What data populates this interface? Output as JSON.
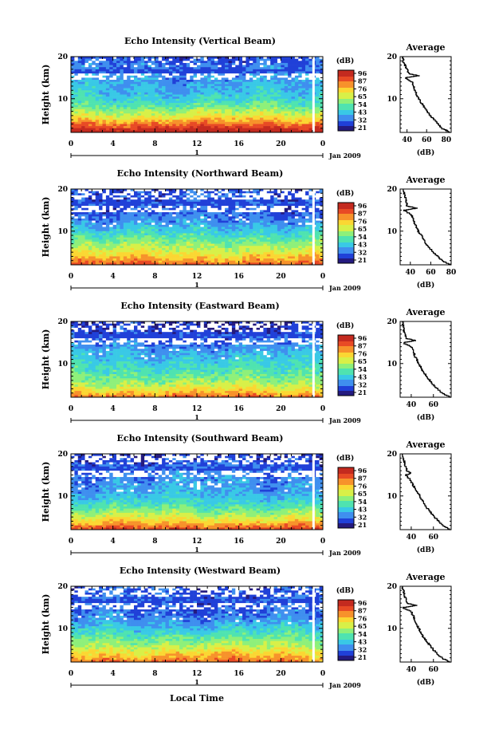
{
  "bottom_xlabel": "Local Time",
  "colorbar": {
    "unit": "(dB)",
    "tick_labels": [
      "96",
      "87",
      "76",
      "65",
      "54",
      "43",
      "32",
      "21"
    ],
    "range": [
      21,
      96
    ],
    "colormap": [
      "#241a7f",
      "#2040d8",
      "#3f8fef",
      "#39c9e6",
      "#4fe3b0",
      "#8ef07a",
      "#d8f048",
      "#fbd733",
      "#f7922b",
      "#e84a25",
      "#c42a1f"
    ]
  },
  "chart_data": [
    {
      "type": "heatmap",
      "title": "Echo Intensity (Vertical Beam)",
      "ylabel": "Height (km)",
      "xlabel": "",
      "x_tick_labels": [
        "0",
        "4",
        "8",
        "12",
        "16",
        "20",
        "0"
      ],
      "y_tick_labels": [
        "10",
        "20"
      ],
      "xlim": [
        0,
        24
      ],
      "ylim": [
        2,
        20
      ],
      "date_marker": "1",
      "date_label": "Jan 2009",
      "z_range": [
        21,
        96
      ],
      "profile": {
        "title": "Average",
        "xlabel": "(dB)",
        "x_tick_labels": [
          "40",
          "60",
          "80"
        ],
        "xlim": [
          33,
          85
        ],
        "x_ticks": [
          40,
          60,
          80
        ],
        "heights": [
          2,
          3,
          4,
          5,
          6,
          7,
          8,
          9,
          10,
          11,
          12,
          13,
          14,
          15,
          15.5,
          16,
          17,
          18,
          19,
          20
        ],
        "values": [
          85,
          76,
          72,
          68,
          64,
          61,
          58,
          55,
          52,
          50,
          48,
          47,
          45,
          38,
          52,
          42,
          40,
          38,
          36,
          36
        ]
      }
    },
    {
      "type": "heatmap",
      "title": "Echo Intensity (Northward Beam)",
      "ylabel": "Height (km)",
      "xlabel": "",
      "x_tick_labels": [
        "0",
        "4",
        "8",
        "12",
        "16",
        "20",
        "0"
      ],
      "y_tick_labels": [
        "10",
        "20"
      ],
      "xlim": [
        0,
        24
      ],
      "ylim": [
        2,
        20
      ],
      "date_marker": "1",
      "date_label": "Jan 2009",
      "z_range": [
        21,
        96
      ],
      "profile": {
        "title": "Average",
        "xlabel": "(dB)",
        "x_tick_labels": [
          "40",
          "60",
          "80"
        ],
        "xlim": [
          30,
          80
        ],
        "x_ticks": [
          40,
          60,
          80
        ],
        "heights": [
          2,
          3,
          4,
          5,
          6,
          7,
          8,
          9,
          10,
          11,
          12,
          13,
          14,
          15,
          15.5,
          16,
          17,
          18,
          19,
          20
        ],
        "values": [
          80,
          72,
          67,
          63,
          59,
          56,
          53,
          51,
          48,
          46,
          44,
          43,
          41,
          34,
          46,
          37,
          36,
          35,
          34,
          33
        ]
      }
    },
    {
      "type": "heatmap",
      "title": "Echo Intensity (Eastward Beam)",
      "ylabel": "Height (km)",
      "xlabel": "",
      "x_tick_labels": [
        "0",
        "4",
        "8",
        "12",
        "16",
        "20",
        "0"
      ],
      "y_tick_labels": [
        "10",
        "20"
      ],
      "xlim": [
        0,
        24
      ],
      "ylim": [
        2,
        20
      ],
      "date_marker": "1",
      "date_label": "Jan 2009",
      "z_range": [
        21,
        96
      ],
      "profile": {
        "title": "Average",
        "xlabel": "(dB)",
        "x_tick_labels": [
          "40",
          "60"
        ],
        "xlim": [
          30,
          76
        ],
        "x_ticks": [
          40,
          60
        ],
        "heights": [
          2,
          3,
          4,
          5,
          6,
          7,
          8,
          9,
          10,
          11,
          12,
          13,
          14,
          15,
          15.5,
          16,
          17,
          18,
          19,
          20
        ],
        "values": [
          76,
          68,
          64,
          60,
          57,
          54,
          51,
          49,
          47,
          45,
          43,
          42,
          40,
          33,
          44,
          36,
          35,
          33,
          33,
          32
        ]
      }
    },
    {
      "type": "heatmap",
      "title": "Echo Intensity (Southward Beam)",
      "ylabel": "Height (km)",
      "xlabel": "",
      "x_tick_labels": [
        "0",
        "4",
        "8",
        "12",
        "16",
        "20",
        "0"
      ],
      "y_tick_labels": [
        "10",
        "20"
      ],
      "xlim": [
        0,
        24
      ],
      "ylim": [
        2,
        20
      ],
      "date_marker": "1",
      "date_label": "Jan 2009",
      "z_range": [
        21,
        96
      ],
      "profile": {
        "title": "Average",
        "xlabel": "(dB)",
        "x_tick_labels": [
          "40",
          "60"
        ],
        "xlim": [
          30,
          76
        ],
        "x_ticks": [
          40,
          60
        ],
        "heights": [
          2,
          3,
          4,
          5,
          6,
          7,
          8,
          9,
          10,
          11,
          12,
          13,
          14,
          15,
          15.5,
          16,
          17,
          18,
          19,
          20
        ],
        "values": [
          76,
          69,
          65,
          61,
          58,
          55,
          52,
          50,
          48,
          45,
          43,
          41,
          39,
          35,
          40,
          36,
          35,
          34,
          33,
          32
        ]
      }
    },
    {
      "type": "heatmap",
      "title": "Echo Intensity (Westward Beam)",
      "ylabel": "Height (km)",
      "xlabel": "",
      "x_tick_labels": [
        "0",
        "4",
        "8",
        "12",
        "16",
        "20",
        "0"
      ],
      "y_tick_labels": [
        "10",
        "20"
      ],
      "xlim": [
        0,
        24
      ],
      "ylim": [
        2,
        20
      ],
      "date_marker": "1",
      "date_label": "Jan 2009",
      "z_range": [
        21,
        96
      ],
      "profile": {
        "title": "Average",
        "xlabel": "(dB)",
        "x_tick_labels": [
          "40",
          "60"
        ],
        "xlim": [
          30,
          76
        ],
        "x_ticks": [
          40,
          60
        ],
        "heights": [
          2,
          3,
          4,
          5,
          6,
          7,
          8,
          9,
          10,
          11,
          12,
          13,
          14,
          15,
          15.5,
          16,
          17,
          18,
          19,
          20
        ],
        "values": [
          76,
          68,
          64,
          60,
          57,
          54,
          51,
          49,
          47,
          45,
          43,
          42,
          40,
          33,
          45,
          36,
          35,
          34,
          33,
          32
        ]
      }
    }
  ]
}
